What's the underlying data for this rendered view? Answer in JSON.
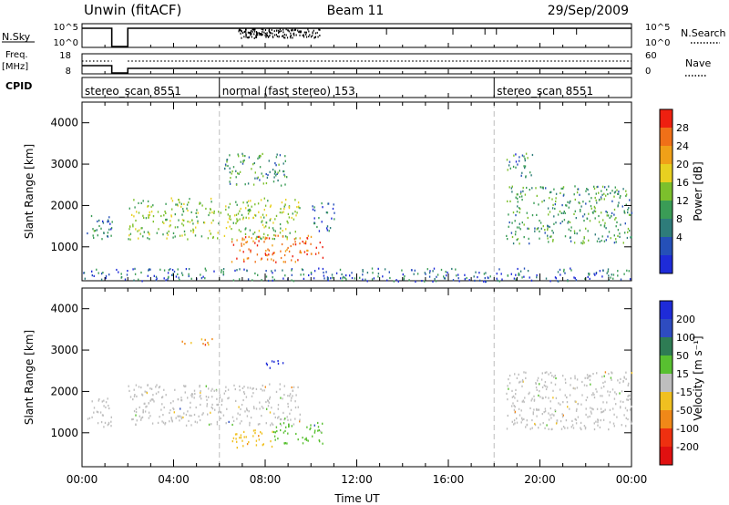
{
  "header": {
    "station": "Unwin (fitACF)",
    "beam": "Beam 11",
    "date": "29/Sep/2009"
  },
  "top_panels": {
    "nsky_label": "N.Sky",
    "nsky_ticks": [
      "10^5",
      "10^0"
    ],
    "nsearch_label": "N.Search",
    "nsearch_ticks": [
      "10^5",
      "10^0"
    ],
    "freq_label_1": "Freq.",
    "freq_label_2": "[MHz]",
    "freq_ticks": [
      "18",
      "8"
    ],
    "nave_label": "Nave",
    "nave_ticks": [
      "60",
      "0"
    ],
    "cpid_label": "CPID",
    "cpid_segments": [
      {
        "label": "stereo_scan 8551",
        "start": 0,
        "end": 6
      },
      {
        "label": "normal (fast stereo) 153",
        "start": 6,
        "end": 18
      },
      {
        "label": "stereo_scan 8551",
        "start": 18,
        "end": 24
      }
    ]
  },
  "colorbars": {
    "power": {
      "label": "Power [dB]",
      "ticks": [
        "28",
        "24",
        "20",
        "16",
        "12",
        "8",
        "4"
      ],
      "colors": [
        "#1e2bd8",
        "#2550b8",
        "#2e7c7a",
        "#3a9c56",
        "#7cc02c",
        "#e8d020",
        "#f0a018",
        "#f07018",
        "#ee2010"
      ]
    },
    "velocity": {
      "label": "Velocity [m s⁻¹]",
      "ticks": [
        "200",
        "100",
        "50",
        "15",
        "-15",
        "-50",
        "-100",
        "-200"
      ],
      "colors": [
        "#1e2bd8",
        "#2e4cc0",
        "#2e7c54",
        "#58c030",
        "#bebebe",
        "#f0c020",
        "#f08818",
        "#ee3010",
        "#e01010"
      ]
    }
  },
  "chart_data": [
    {
      "type": "heatmap",
      "title": "Power",
      "xlabel": "Time UT",
      "ylabel": "Slant Range [km]",
      "x_range_hours": [
        0,
        24
      ],
      "x_ticks": [
        "00:00",
        "04:00",
        "08:00",
        "12:00",
        "16:00",
        "20:00",
        "00:00"
      ],
      "ylim": [
        180,
        4500
      ],
      "y_ticks": [
        "1000",
        "2000",
        "3000",
        "4000"
      ],
      "colorbar": "Power [dB]",
      "features": [
        {
          "t_start": 0.2,
          "t_end": 1.3,
          "r_low": 1150,
          "r_high": 1850,
          "power_db": 8
        },
        {
          "t_start": 2.0,
          "t_end": 9.5,
          "r_low": 1200,
          "r_high": 2200,
          "power_db": 14
        },
        {
          "t_start": 6.2,
          "t_end": 9.0,
          "r_low": 2500,
          "r_high": 3300,
          "power_db": 10
        },
        {
          "t_start": 6.5,
          "t_end": 10.5,
          "r_low": 650,
          "r_high": 1300,
          "power_db": 26
        },
        {
          "t_start": 10.0,
          "t_end": 11.0,
          "r_low": 1400,
          "r_high": 2100,
          "power_db": 6
        },
        {
          "t_start": 18.5,
          "t_end": 24.0,
          "r_low": 1100,
          "r_high": 2500,
          "power_db": 10
        },
        {
          "t_start": 18.5,
          "t_end": 19.7,
          "r_low": 2700,
          "r_high": 3300,
          "power_db": 8
        },
        {
          "t_start": 0.0,
          "t_end": 24.0,
          "r_low": 180,
          "r_high": 500,
          "power_db": 6
        }
      ]
    },
    {
      "type": "heatmap",
      "title": "Velocity",
      "xlabel": "Time UT",
      "ylabel": "Slant Range [km]",
      "x_range_hours": [
        0,
        24
      ],
      "x_ticks": [
        "00:00",
        "04:00",
        "08:00",
        "12:00",
        "16:00",
        "20:00",
        "00:00"
      ],
      "ylim": [
        180,
        4500
      ],
      "y_ticks": [
        "1000",
        "2000",
        "3000",
        "4000"
      ],
      "colorbar": "Velocity [m s⁻¹]",
      "features": [
        {
          "t_start": 0.2,
          "t_end": 1.3,
          "r_low": 1150,
          "r_high": 1850,
          "velocity": 0
        },
        {
          "t_start": 2.0,
          "t_end": 9.5,
          "r_low": 1200,
          "r_high": 2200,
          "velocity": 0
        },
        {
          "t_start": 6.5,
          "t_end": 8.3,
          "r_low": 650,
          "r_high": 1100,
          "velocity": -40
        },
        {
          "t_start": 8.3,
          "t_end": 10.5,
          "r_low": 750,
          "r_high": 1300,
          "velocity": 50
        },
        {
          "t_start": 8.0,
          "t_end": 8.8,
          "r_low": 2550,
          "r_high": 2800,
          "velocity": 200
        },
        {
          "t_start": 4.2,
          "t_end": 5.8,
          "r_low": 3150,
          "r_high": 3300,
          "velocity": -50
        },
        {
          "t_start": 18.5,
          "t_end": 24.0,
          "r_low": 1100,
          "r_high": 2500,
          "velocity": 0
        }
      ]
    }
  ]
}
